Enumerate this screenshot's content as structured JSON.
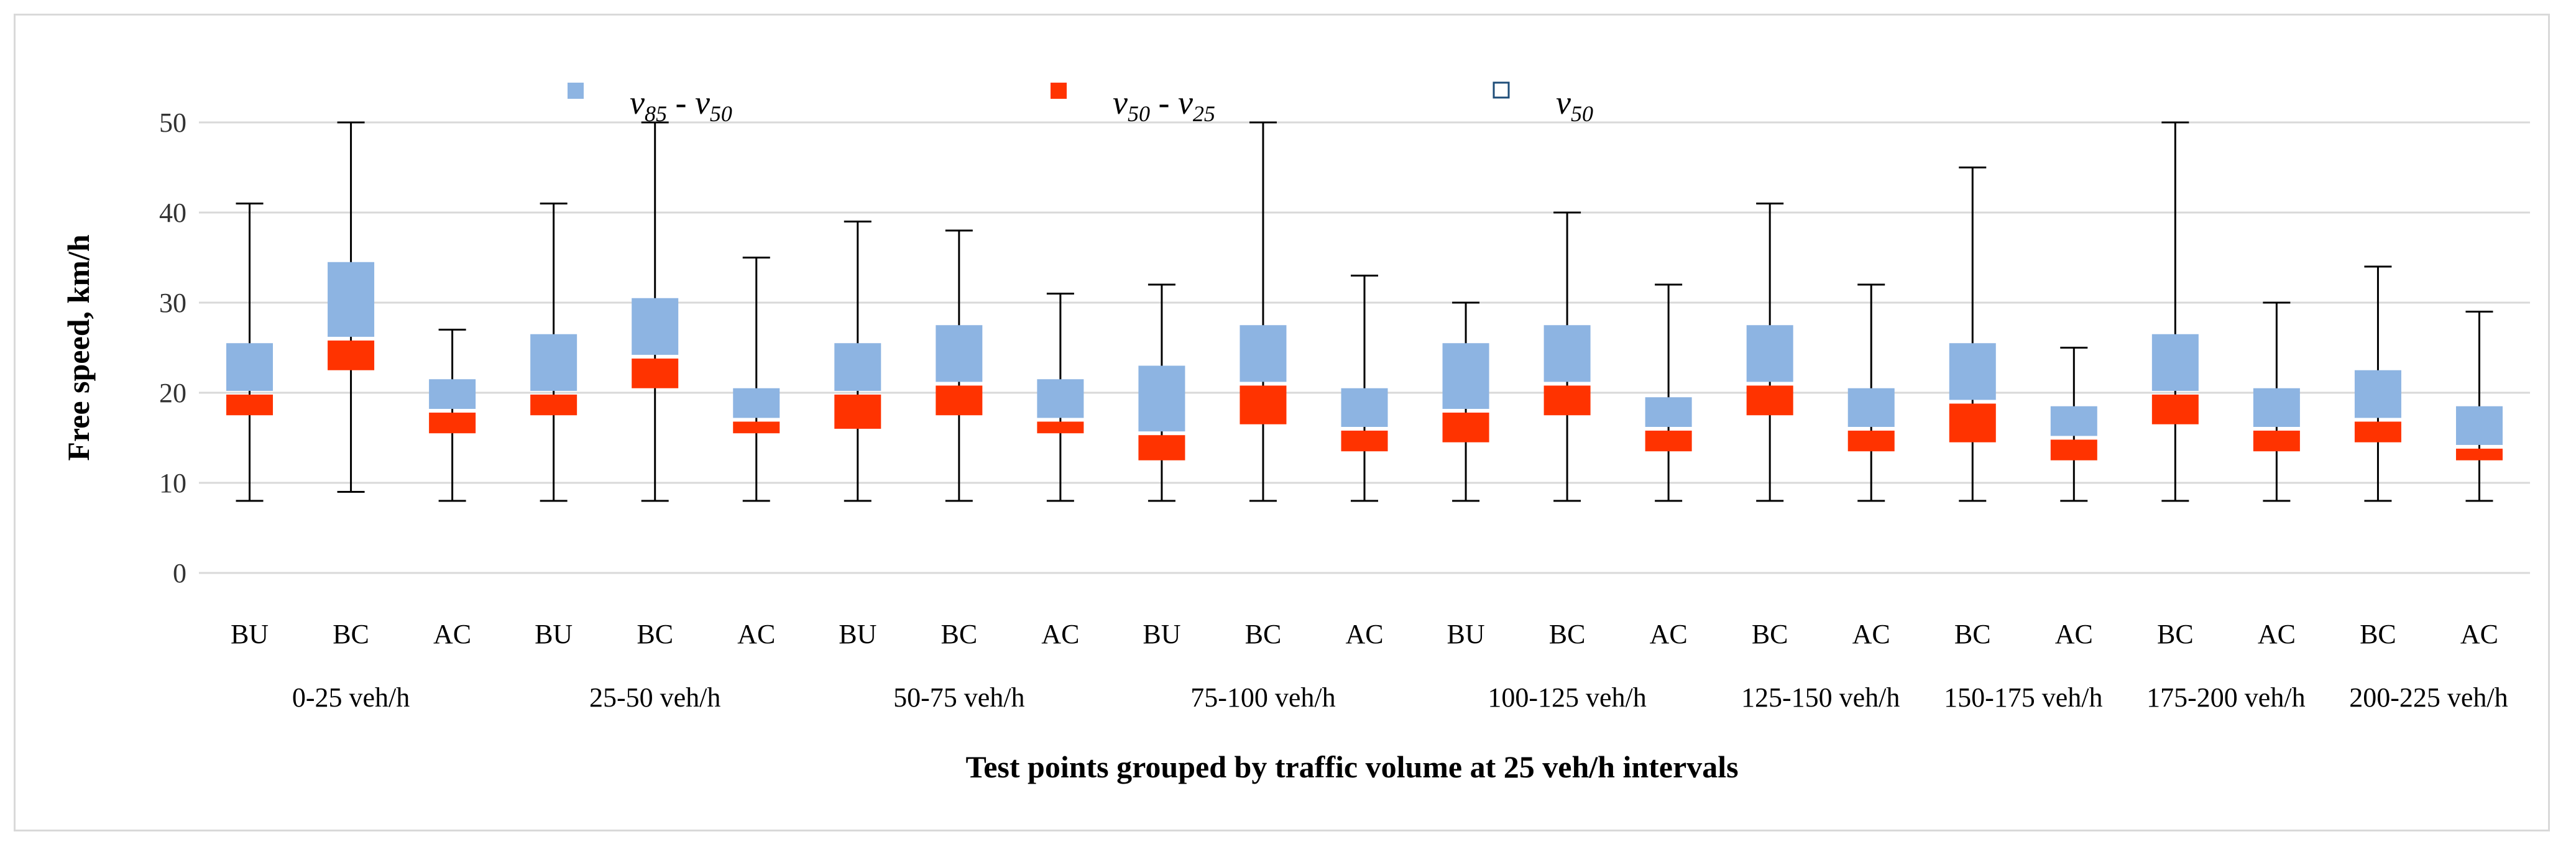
{
  "chart_data": {
    "type": "box",
    "ylabel": "Free speed, km/h",
    "xlabel": "Test points grouped by traffic volume at 25 veh/h intervals",
    "ylim": [
      0,
      50
    ],
    "yticks": [
      0,
      10,
      20,
      30,
      40,
      50
    ],
    "grid": true,
    "legend": {
      "placement": "top",
      "entries": [
        {
          "v1": "v",
          "sub1": "85",
          "sep": " - ",
          "v2": "v",
          "sub2": "50",
          "color": "#8db4e2",
          "kind": "filled"
        },
        {
          "v1": "v",
          "sub1": "50",
          "sep": " - ",
          "v2": "v",
          "sub2": "25",
          "color": "#ff3300",
          "kind": "filled"
        },
        {
          "v1": "v",
          "sub1": "50",
          "color": "#1f4e79",
          "kind": "outline"
        }
      ]
    },
    "colors": {
      "upper": "#8db4e2",
      "lower": "#ff3300",
      "whisker": "#000000",
      "grid": "#d9d9d9"
    },
    "groups": [
      {
        "label": "0-25 veh/h",
        "points": [
          {
            "cat": "BU",
            "min": 8,
            "q25": 17.5,
            "median": 20,
            "q85": 25.5,
            "max": 41
          },
          {
            "cat": "BC",
            "min": 9,
            "q25": 22.5,
            "median": 26,
            "q85": 34.5,
            "max": 50
          },
          {
            "cat": "AC",
            "min": 8,
            "q25": 15.5,
            "median": 18,
            "q85": 21.5,
            "max": 27
          }
        ]
      },
      {
        "label": "25-50 veh/h",
        "points": [
          {
            "cat": "BU",
            "min": 8,
            "q25": 17.5,
            "median": 20,
            "q85": 26.5,
            "max": 41
          },
          {
            "cat": "BC",
            "min": 8,
            "q25": 20.5,
            "median": 24,
            "q85": 30.5,
            "max": 50
          },
          {
            "cat": "AC",
            "min": 8,
            "q25": 15.5,
            "median": 17,
            "q85": 20.5,
            "max": 35
          }
        ]
      },
      {
        "label": "50-75 veh/h",
        "points": [
          {
            "cat": "BU",
            "min": 8,
            "q25": 16,
            "median": 20,
            "q85": 25.5,
            "max": 39
          },
          {
            "cat": "BC",
            "min": 8,
            "q25": 17.5,
            "median": 21,
            "q85": 27.5,
            "max": 38
          },
          {
            "cat": "AC",
            "min": 8,
            "q25": 15.5,
            "median": 17,
            "q85": 21.5,
            "max": 31
          }
        ]
      },
      {
        "label": "75-100 veh/h",
        "points": [
          {
            "cat": "BU",
            "min": 8,
            "q25": 12.5,
            "median": 15.5,
            "q85": 23,
            "max": 32
          },
          {
            "cat": "BC",
            "min": 8,
            "q25": 16.5,
            "median": 21,
            "q85": 27.5,
            "max": 50
          },
          {
            "cat": "AC",
            "min": 8,
            "q25": 13.5,
            "median": 16,
            "q85": 20.5,
            "max": 33
          }
        ]
      },
      {
        "label": "100-125 veh/h",
        "points": [
          {
            "cat": "BU",
            "min": 8,
            "q25": 14.5,
            "median": 18,
            "q85": 25.5,
            "max": 30
          },
          {
            "cat": "BC",
            "min": 8,
            "q25": 17.5,
            "median": 21,
            "q85": 27.5,
            "max": 40
          },
          {
            "cat": "AC",
            "min": 8,
            "q25": 13.5,
            "median": 16,
            "q85": 19.5,
            "max": 32
          }
        ]
      },
      {
        "label": "125-150 veh/h",
        "points": [
          {
            "cat": "BC",
            "min": 8,
            "q25": 17.5,
            "median": 21,
            "q85": 27.5,
            "max": 41
          },
          {
            "cat": "AC",
            "min": 8,
            "q25": 13.5,
            "median": 16,
            "q85": 20.5,
            "max": 32
          }
        ]
      },
      {
        "label": "150-175 veh/h",
        "points": [
          {
            "cat": "BC",
            "min": 8,
            "q25": 14.5,
            "median": 19,
            "q85": 25.5,
            "max": 45
          },
          {
            "cat": "AC",
            "min": 8,
            "q25": 12.5,
            "median": 15,
            "q85": 18.5,
            "max": 25
          }
        ]
      },
      {
        "label": "175-200 veh/h",
        "points": [
          {
            "cat": "BC",
            "min": 8,
            "q25": 16.5,
            "median": 20,
            "q85": 26.5,
            "max": 50
          },
          {
            "cat": "AC",
            "min": 8,
            "q25": 13.5,
            "median": 16,
            "q85": 20.5,
            "max": 30
          }
        ]
      },
      {
        "label": "200-225 veh/h",
        "points": [
          {
            "cat": "BC",
            "min": 8,
            "q25": 14.5,
            "median": 17,
            "q85": 22.5,
            "max": 34
          },
          {
            "cat": "AC",
            "min": 8,
            "q25": 12.5,
            "median": 14,
            "q85": 18.5,
            "max": 29
          }
        ]
      }
    ]
  }
}
